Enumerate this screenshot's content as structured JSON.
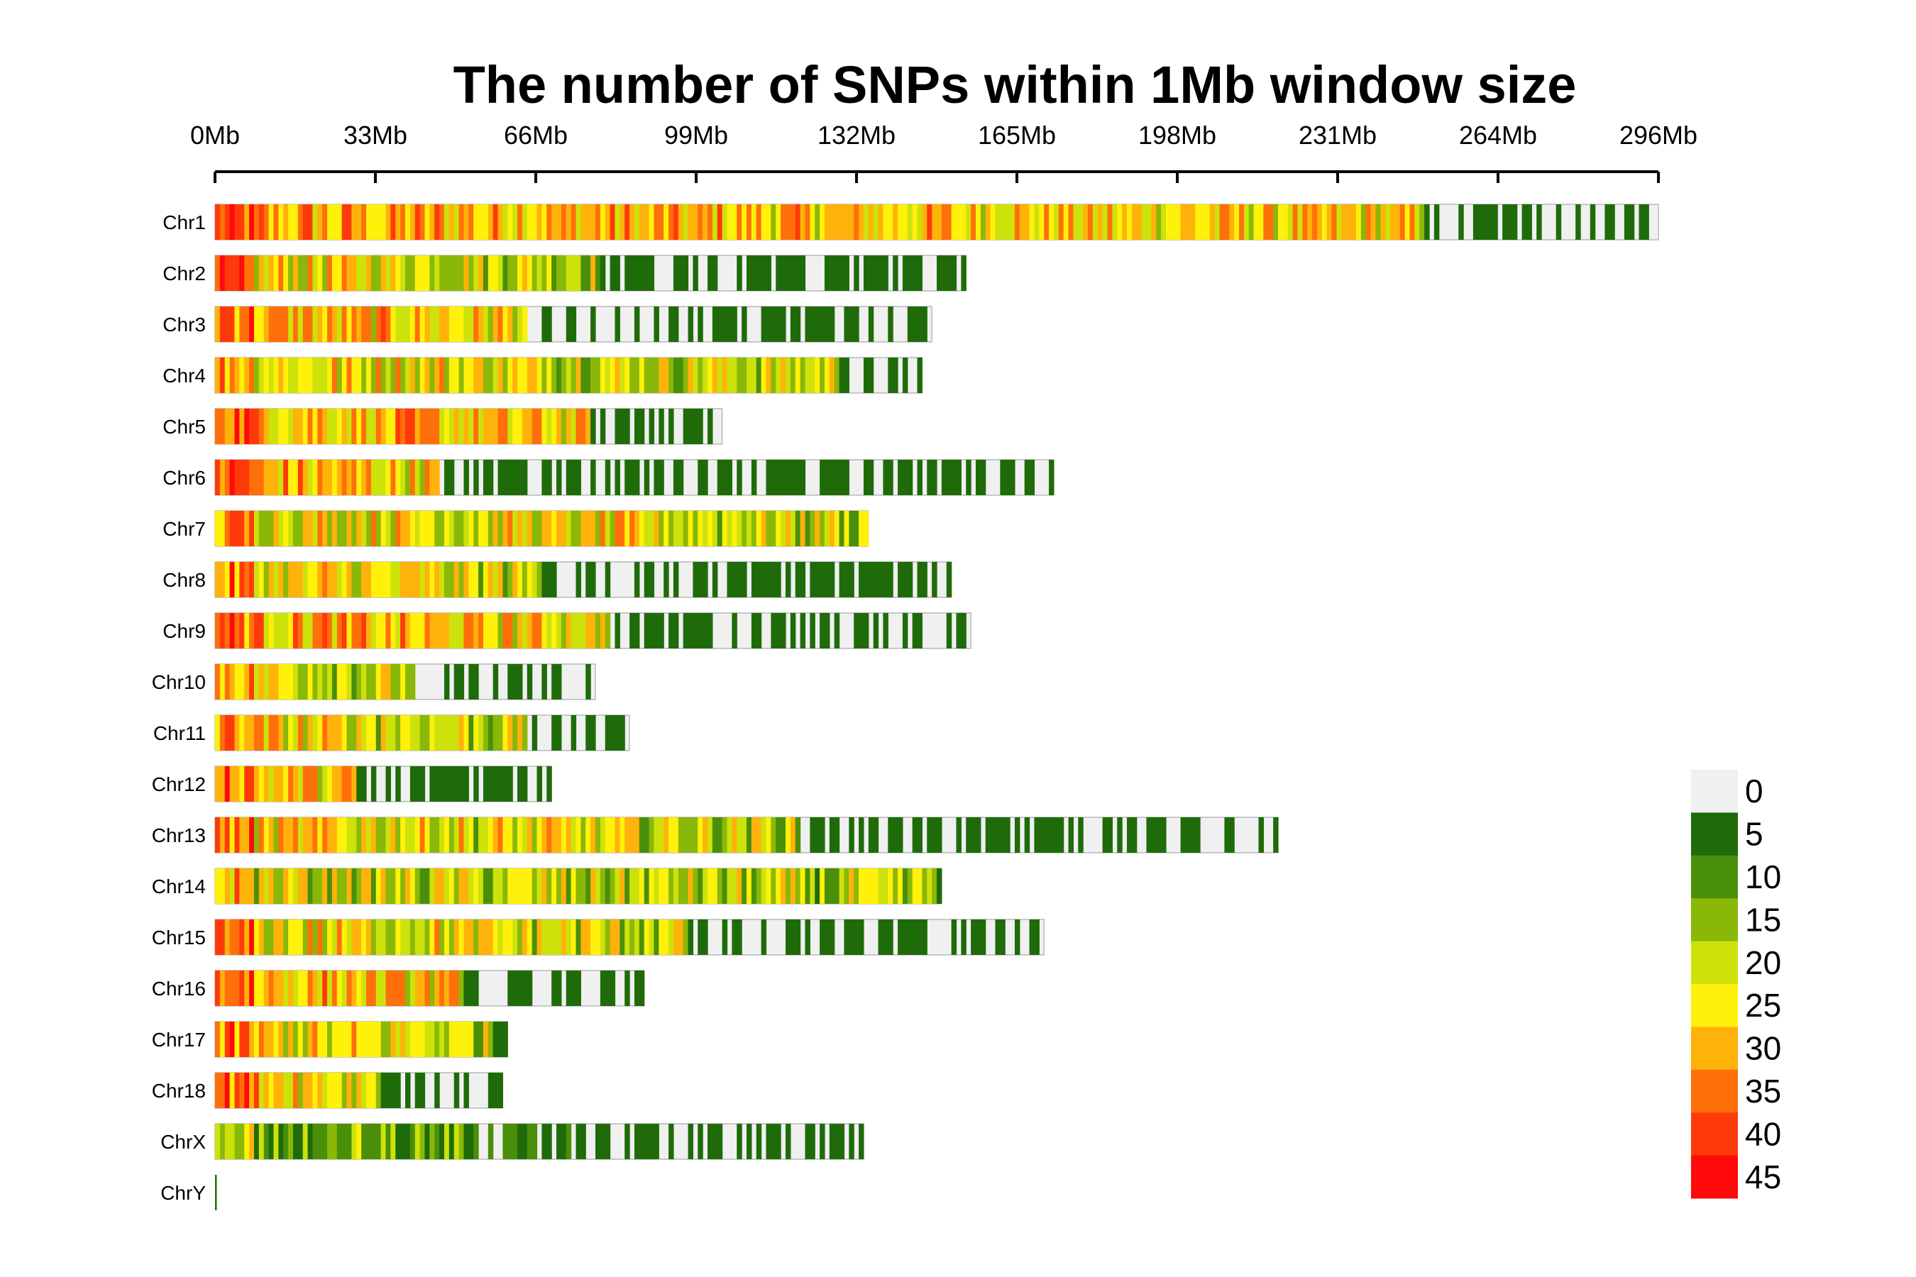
{
  "chart_data": {
    "type": "heatmap",
    "title": "The number of SNPs within 1Mb window size",
    "x_ticks": [
      "0Mb",
      "33Mb",
      "66Mb",
      "99Mb",
      "132Mb",
      "165Mb",
      "198Mb",
      "231Mb",
      "264Mb",
      "296Mb"
    ],
    "x_range_mb": [
      0,
      296
    ],
    "window_mb": 1,
    "legend": {
      "placement": "right",
      "labels": [
        "0",
        "5",
        "10",
        "15",
        "20",
        "25",
        "30",
        "35",
        "40",
        "45"
      ],
      "colors": [
        "#f0f0f0",
        "#1f6b0a",
        "#4a8f0a",
        "#8ab808",
        "#cde20a",
        "#fff10a",
        "#ffb20a",
        "#ff6f0a",
        "#ff3a0a",
        "#ff0a0a"
      ]
    },
    "chromosomes": [
      {
        "name": "Chr1",
        "length_mb": 296,
        "dense_mb": 248,
        "profile": "high"
      },
      {
        "name": "Chr2",
        "length_mb": 154,
        "dense_mb": 79,
        "profile": "mixed"
      },
      {
        "name": "Chr3",
        "length_mb": 147,
        "dense_mb": 64,
        "profile": "high"
      },
      {
        "name": "Chr4",
        "length_mb": 145,
        "dense_mb": 128,
        "profile": "mixed"
      },
      {
        "name": "Chr5",
        "length_mb": 104,
        "dense_mb": 77,
        "profile": "high"
      },
      {
        "name": "Chr6",
        "length_mb": 172,
        "dense_mb": 46,
        "profile": "high"
      },
      {
        "name": "Chr7",
        "length_mb": 134,
        "dense_mb": 134,
        "profile": "mixed"
      },
      {
        "name": "Chr8",
        "length_mb": 151,
        "dense_mb": 67,
        "profile": "mixed"
      },
      {
        "name": "Chr9",
        "length_mb": 155,
        "dense_mb": 81,
        "profile": "high"
      },
      {
        "name": "Chr10",
        "length_mb": 78,
        "dense_mb": 41,
        "profile": "mixed"
      },
      {
        "name": "Chr11",
        "length_mb": 85,
        "dense_mb": 64,
        "profile": "mixed"
      },
      {
        "name": "Chr12",
        "length_mb": 69,
        "dense_mb": 29,
        "profile": "high"
      },
      {
        "name": "Chr13",
        "length_mb": 218,
        "dense_mb": 120,
        "profile": "mixed"
      },
      {
        "name": "Chr14",
        "length_mb": 149,
        "dense_mb": 149,
        "profile": "low"
      },
      {
        "name": "Chr15",
        "length_mb": 170,
        "dense_mb": 97,
        "profile": "mixed"
      },
      {
        "name": "Chr16",
        "length_mb": 88,
        "dense_mb": 51,
        "profile": "high"
      },
      {
        "name": "Chr17",
        "length_mb": 60,
        "dense_mb": 57,
        "profile": "mixed"
      },
      {
        "name": "Chr18",
        "length_mb": 59,
        "dense_mb": 34,
        "profile": "high"
      },
      {
        "name": "ChrX",
        "length_mb": 133,
        "dense_mb": 73,
        "profile": "green"
      },
      {
        "name": "ChrY",
        "length_mb": 0.3,
        "dense_mb": 0,
        "profile": "green"
      }
    ]
  }
}
